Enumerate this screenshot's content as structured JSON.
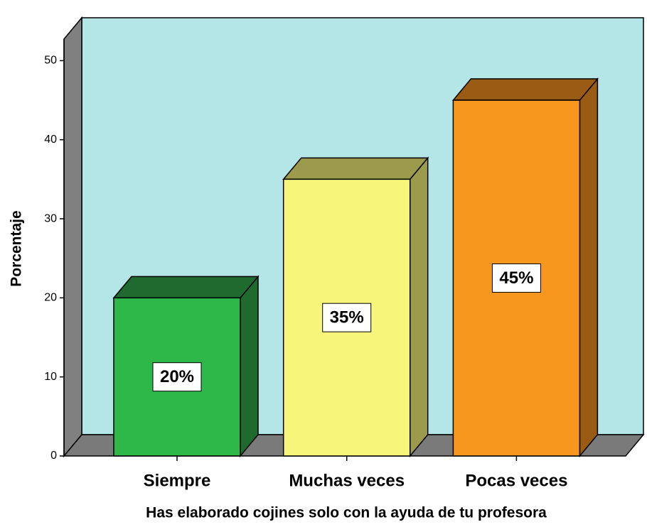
{
  "chart_data": {
    "type": "bar3d",
    "categories": [
      "Siempre",
      "Muchas veces",
      "Pocas veces"
    ],
    "values": [
      20,
      35,
      45
    ],
    "value_labels": [
      "20%",
      "35%",
      "45%"
    ],
    "colors": [
      "#2eb84a",
      "#f7f57a",
      "#f7971e"
    ],
    "side_colors": [
      "#1f6b2f",
      "#9c9a4c",
      "#9a5b14"
    ],
    "top_colors": [
      "#1f6b2f",
      "#9c9a4c",
      "#9a5b14"
    ],
    "ylim": [
      0,
      53
    ],
    "yticks": [
      0,
      10,
      20,
      30,
      40,
      50
    ],
    "ylabel": "Porcentaje",
    "xlabel": "Has elaborado cojines solo con la ayuda de tu profesora"
  }
}
